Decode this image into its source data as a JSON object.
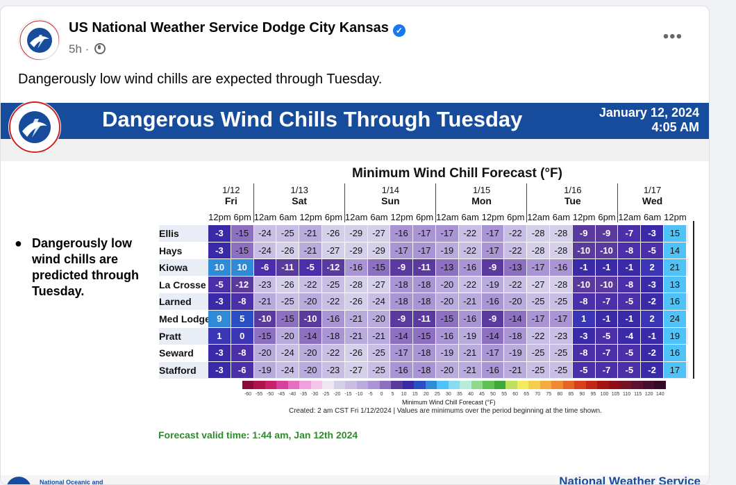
{
  "post": {
    "author": "US National Weather Service Dodge City Kansas",
    "time": "5h",
    "separator": "·",
    "more_icon": "•••",
    "caption": "Dangerously low wind chills are expected through Tuesday."
  },
  "graphic": {
    "title": "Dangerous Wind Chills Through Tuesday",
    "date": "January 12, 2024",
    "time": "4:05 AM",
    "bullet": "Dangerously low wind chills are predicted through Tuesday.",
    "bullet_marker": "●",
    "table_title": "Minimum Wind Chill Forecast (°F)",
    "scale_label": "Minimum Wind Chill Forecast (°F)",
    "created": "Created: 2 am CST Fri 1/12/2024  |  Values are minimums over the period beginning at the time shown.",
    "valid": "Forecast valid time: 1:44 am, Jan 12th 2024",
    "footer_left": "National Oceanic and",
    "footer_right": "National Weather Service",
    "scale_ticks": [
      "-60",
      "-55",
      "-50",
      "-45",
      "-40",
      "-35",
      "-30",
      "-25",
      "-20",
      "-15",
      "-10",
      "-5",
      "0",
      "5",
      "10",
      "15",
      "20",
      "25",
      "30",
      "35",
      "40",
      "45",
      "50",
      "55",
      "60",
      "65",
      "70",
      "75",
      "80",
      "85",
      "90",
      "95",
      "100",
      "105",
      "110",
      "115",
      "120",
      "140"
    ],
    "days": [
      {
        "date": "1/12",
        "dow": "Fri",
        "hours": [
          "12pm",
          "6pm"
        ]
      },
      {
        "date": "1/13",
        "dow": "Sat",
        "hours": [
          "12am",
          "6am",
          "12pm",
          "6pm"
        ]
      },
      {
        "date": "1/14",
        "dow": "Sun",
        "hours": [
          "12am",
          "6am",
          "12pm",
          "6pm"
        ]
      },
      {
        "date": "1/15",
        "dow": "Mon",
        "hours": [
          "12am",
          "6am",
          "12pm",
          "6pm"
        ]
      },
      {
        "date": "1/16",
        "dow": "Tue",
        "hours": [
          "12am",
          "6am",
          "12pm",
          "6pm"
        ]
      },
      {
        "date": "1/17",
        "dow": "Wed",
        "hours": [
          "12am",
          "6am",
          "12pm"
        ]
      }
    ],
    "rows": [
      {
        "name": "Ellis",
        "values": [
          -3,
          -15,
          -24,
          -25,
          -21,
          -26,
          -29,
          -27,
          -16,
          -17,
          -17,
          -22,
          -17,
          -22,
          -28,
          -28,
          -9,
          -9,
          -7,
          -3,
          15
        ]
      },
      {
        "name": "Hays",
        "values": [
          -3,
          -15,
          -24,
          -26,
          -21,
          -27,
          -29,
          -29,
          -17,
          -17,
          -19,
          -22,
          -17,
          -22,
          -28,
          -28,
          -10,
          -10,
          -8,
          -5,
          14
        ]
      },
      {
        "name": "Kiowa",
        "values": [
          10,
          10,
          -6,
          -11,
          -5,
          -12,
          -16,
          -15,
          -9,
          -11,
          -13,
          -16,
          -9,
          -13,
          -17,
          -16,
          -1,
          -1,
          -1,
          2,
          21
        ]
      },
      {
        "name": "La Crosse",
        "values": [
          -5,
          -12,
          -23,
          -26,
          -22,
          -25,
          -28,
          -27,
          -18,
          -18,
          -20,
          -22,
          -19,
          -22,
          -27,
          -28,
          -10,
          -10,
          -8,
          -3,
          13
        ]
      },
      {
        "name": "Larned",
        "values": [
          -3,
          -8,
          -21,
          -25,
          -20,
          -22,
          -26,
          -24,
          -18,
          -18,
          -20,
          -21,
          -16,
          -20,
          -25,
          -25,
          -8,
          -7,
          -5,
          -2,
          16
        ]
      },
      {
        "name": "Med Lodge",
        "values": [
          9,
          5,
          -10,
          -15,
          -10,
          -16,
          -21,
          -20,
          -9,
          -11,
          -15,
          -16,
          -9,
          -14,
          -17,
          -17,
          1,
          -1,
          -1,
          2,
          24
        ]
      },
      {
        "name": "Pratt",
        "values": [
          1,
          0,
          -15,
          -20,
          -14,
          -18,
          -21,
          -21,
          -14,
          -15,
          -16,
          -19,
          -14,
          -18,
          -22,
          -23,
          -3,
          -5,
          -4,
          -1,
          19
        ]
      },
      {
        "name": "Seward",
        "values": [
          -3,
          -8,
          -20,
          -24,
          -20,
          -22,
          -26,
          -25,
          -17,
          -18,
          -19,
          -21,
          -17,
          -19,
          -25,
          -25,
          -8,
          -7,
          -5,
          -2,
          16
        ]
      },
      {
        "name": "Stafford",
        "values": [
          -3,
          -6,
          -19,
          -24,
          -20,
          -23,
          -27,
          -25,
          -16,
          -18,
          -20,
          -21,
          -16,
          -21,
          -25,
          -25,
          -5,
          -7,
          -5,
          -2,
          17
        ]
      }
    ],
    "colors": {
      "banner": "#174c9d",
      "valid_text": "#2e8b2e"
    }
  }
}
